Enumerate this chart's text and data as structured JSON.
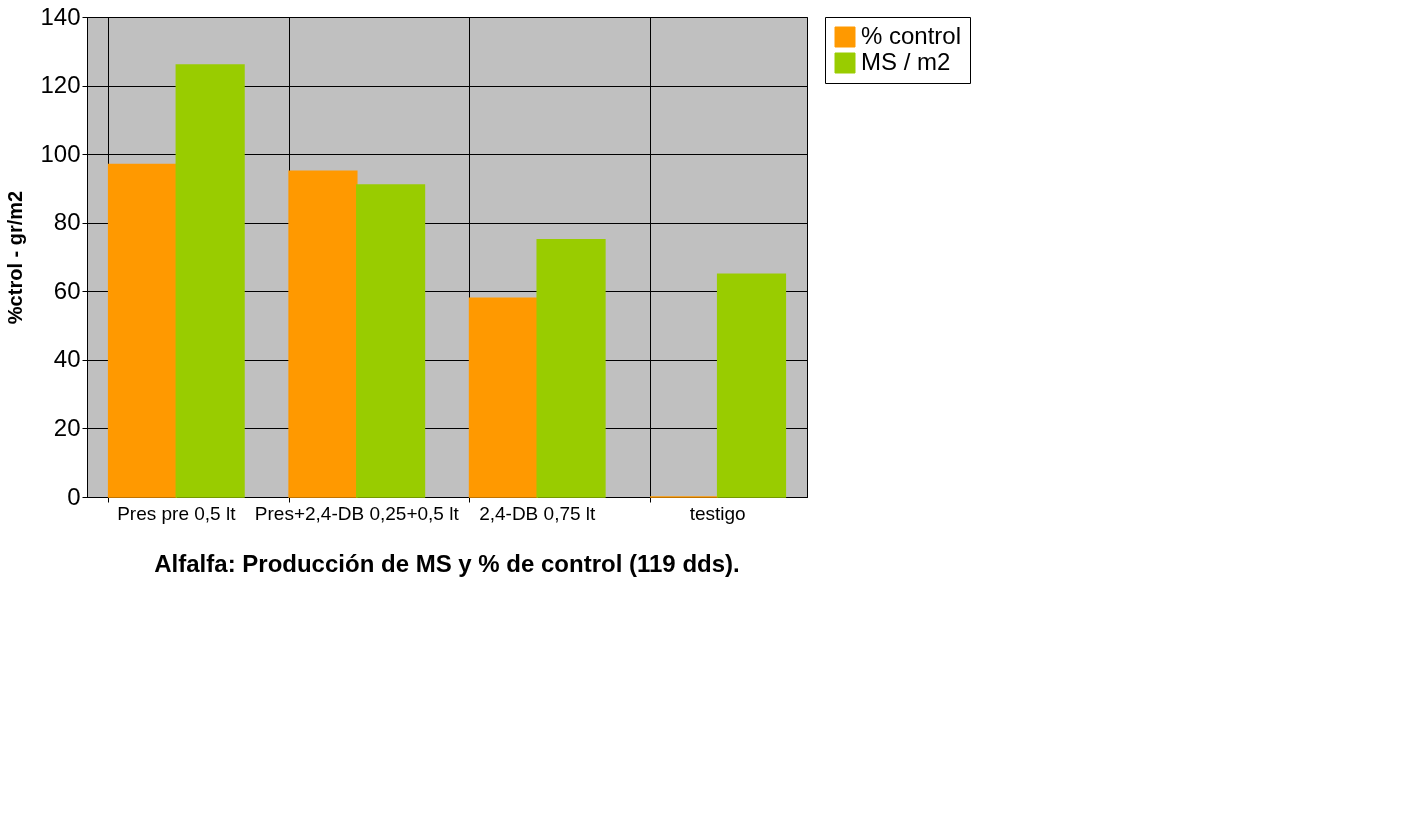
{
  "chart_data": {
    "type": "bar",
    "title": "Alfalfa: Producción de MS y % de control (119 dds).",
    "ylabel": "%ctrol - gr/m2",
    "categories": [
      "Pres pre 0,5 lt",
      "Pres+2,4-DB 0,25+0,5 lt",
      "2,4-DB 0,75 lt",
      "testigo"
    ],
    "series": [
      {
        "name": "% control",
        "color": "#ff9900",
        "values": [
          97,
          95,
          58,
          0
        ]
      },
      {
        "name": "MS / m2",
        "color": "#99cc00",
        "values": [
          126,
          91,
          75,
          65
        ]
      }
    ],
    "ylim": [
      0,
      140
    ],
    "yticks": [
      0,
      20,
      40,
      60,
      80,
      100,
      120,
      140
    ],
    "grid": true,
    "legend": "right"
  }
}
